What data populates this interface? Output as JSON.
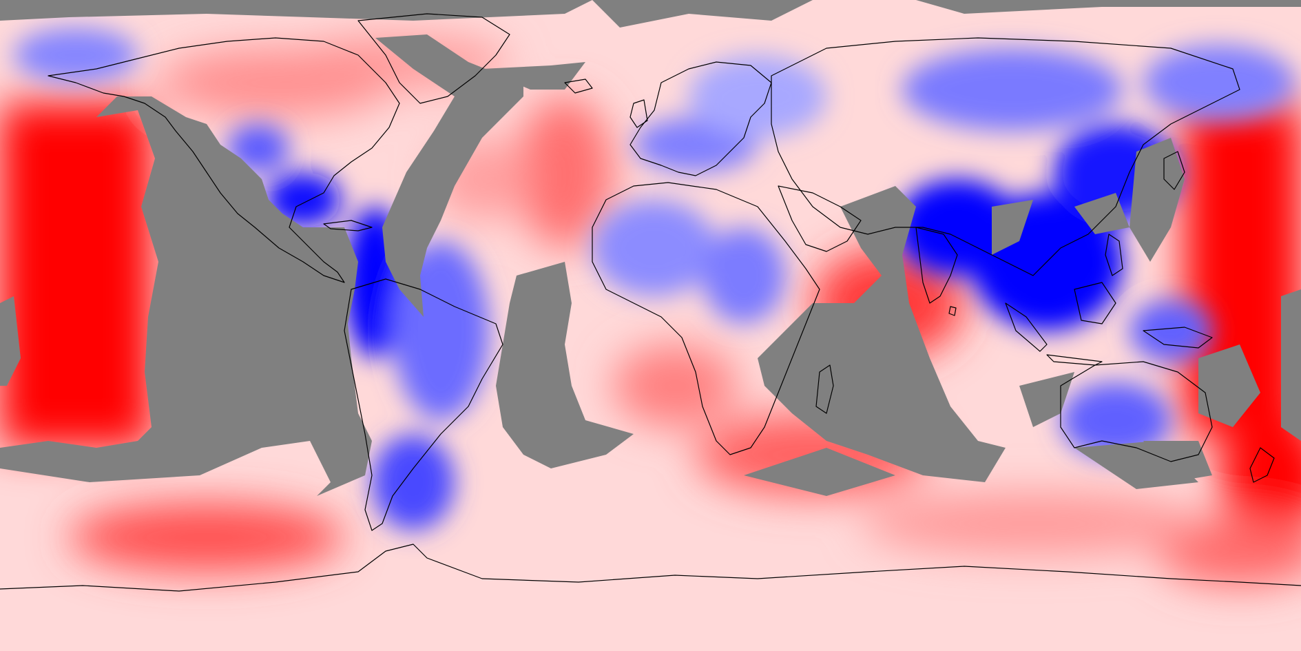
{
  "map": {
    "projection": "equirectangular",
    "lon_range": [
      -180,
      180
    ],
    "lat_range": [
      -90,
      90
    ],
    "colors": {
      "positive": "#ff0000",
      "neutral": "#ffffff",
      "negative": "#0000ff",
      "missing": "#808080",
      "coastline": "#000000"
    }
  }
}
